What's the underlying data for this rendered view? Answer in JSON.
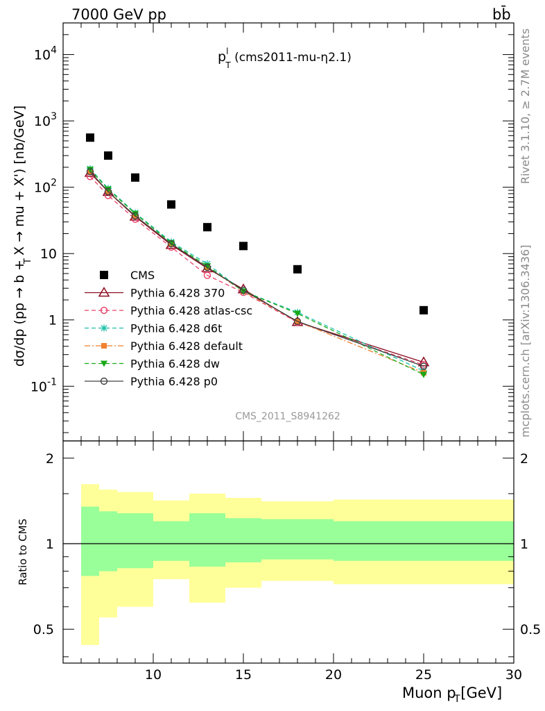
{
  "header": {
    "left": "7000 GeV pp",
    "right": "bb̄"
  },
  "side_notes": {
    "rivet": "Rivet 3.1.10, ≥ 2.7M events",
    "mcplots": "mcplots.cern.ch [arXiv:1306.3436]"
  },
  "analysis_id": "CMS_2011_S8941262",
  "plot_title": {
    "main": "p",
    "sup": "l",
    "sub": "T",
    "tail": " (cms2011-mu-η2.1)"
  },
  "axes": {
    "ylabel": "dσ/dp  (pp → b + X → mu + X') [nb/GeV]",
    "ylabel_sub": "T",
    "xlabel": "Muon p  [GeV]",
    "xlabel_sub": "T",
    "ratio_ylabel": "Ratio to CMS"
  },
  "colors": {
    "cms": "#000000",
    "p370": "#8b0a1e",
    "atlas": "#e8406a",
    "d6t": "#19c0a8",
    "default": "#f08030",
    "dw": "#18a818",
    "p0": "#404040",
    "band_outer": "#ffff99",
    "band_inner": "#99ff99"
  },
  "chart_data": [
    {
      "type": "scatter",
      "x_range": [
        5,
        30
      ],
      "y_range": [
        0.015,
        30000
      ],
      "y_log": true,
      "x_ticks": [
        10,
        15,
        20,
        25,
        30
      ],
      "y_tick_labels": [
        "10^4",
        "10^3",
        "10^2",
        "10",
        "1",
        "10^-1"
      ],
      "legend_position": "lower-left",
      "series": [
        {
          "name": "CMS",
          "x": [
            6.5,
            7.5,
            9,
            11,
            13,
            15,
            18,
            25
          ],
          "y": [
            560,
            300,
            140,
            55,
            25,
            13,
            5.8,
            1.4
          ]
        },
        {
          "name": "Pythia 6.428 370",
          "x": [
            6.5,
            7.5,
            9,
            11,
            13,
            15,
            18,
            25
          ],
          "y": [
            165,
            85,
            36,
            13.5,
            6.0,
            2.9,
            0.93,
            0.23
          ]
        },
        {
          "name": "Pythia 6.428 atlas-csc",
          "x": [
            6.5,
            7.5,
            9,
            11,
            13,
            15,
            18,
            25
          ],
          "y": [
            145,
            75,
            33,
            12.5,
            4.7,
            2.6,
            0.92,
            0.21
          ]
        },
        {
          "name": "Pythia 6.428 d6t",
          "x": [
            6.5,
            7.5,
            9,
            11,
            13,
            15,
            18,
            25
          ],
          "y": [
            190,
            96,
            41,
            15,
            7.0,
            2.7,
            1.3,
            0.17
          ]
        },
        {
          "name": "Pythia 6.428 default",
          "x": [
            6.5,
            7.5,
            9,
            11,
            13,
            15,
            18,
            25
          ],
          "y": [
            170,
            85,
            37,
            14,
            6.2,
            2.7,
            0.95,
            0.16
          ]
        },
        {
          "name": "Pythia 6.428 dw",
          "x": [
            6.5,
            7.5,
            9,
            11,
            13,
            15,
            18,
            25
          ],
          "y": [
            185,
            93,
            40,
            14.5,
            6.5,
            2.7,
            1.25,
            0.15
          ]
        },
        {
          "name": "Pythia 6.428 p0",
          "x": [
            6.5,
            7.5,
            9,
            11,
            13,
            15,
            18,
            25
          ],
          "y": [
            172,
            86,
            37,
            14,
            6.2,
            2.8,
            0.95,
            0.2
          ]
        }
      ]
    },
    {
      "type": "area",
      "x_range": [
        5,
        30
      ],
      "y_range": [
        0.38,
        2.3
      ],
      "y_log": true,
      "x_ticks": [
        10,
        15,
        20,
        25,
        30
      ],
      "y_tick_labels": [
        "2",
        "1",
        "0.5"
      ],
      "ylabel": "Ratio to CMS",
      "bins": [
        6,
        7,
        8,
        10,
        12,
        14,
        16,
        20,
        30
      ],
      "inner_low": [
        0.77,
        0.8,
        0.82,
        0.87,
        0.83,
        0.86,
        0.88,
        0.87
      ],
      "inner_high": [
        1.35,
        1.3,
        1.28,
        1.2,
        1.28,
        1.23,
        1.22,
        1.2
      ],
      "outer_low": [
        0.44,
        0.55,
        0.6,
        0.75,
        0.62,
        0.7,
        0.74,
        0.72
      ],
      "outer_high": [
        1.62,
        1.55,
        1.52,
        1.42,
        1.5,
        1.45,
        1.41,
        1.43
      ],
      "reference": 1
    }
  ]
}
